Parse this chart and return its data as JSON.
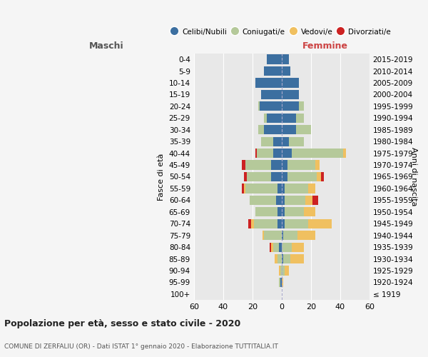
{
  "age_groups": [
    "100+",
    "95-99",
    "90-94",
    "85-89",
    "80-84",
    "75-79",
    "70-74",
    "65-69",
    "60-64",
    "55-59",
    "50-54",
    "45-49",
    "40-44",
    "35-39",
    "30-34",
    "25-29",
    "20-24",
    "15-19",
    "10-14",
    "5-9",
    "0-4"
  ],
  "birth_years": [
    "≤ 1919",
    "1920-1924",
    "1925-1929",
    "1930-1934",
    "1935-1939",
    "1940-1944",
    "1945-1949",
    "1950-1954",
    "1955-1959",
    "1960-1964",
    "1965-1969",
    "1970-1974",
    "1975-1979",
    "1980-1984",
    "1985-1989",
    "1990-1994",
    "1995-1999",
    "2000-2004",
    "2005-2009",
    "2010-2014",
    "2015-2019"
  ],
  "male": {
    "celibi": [
      0,
      1,
      0,
      0,
      2,
      0,
      3,
      3,
      4,
      3,
      7,
      7,
      6,
      6,
      12,
      10,
      15,
      14,
      18,
      12,
      10
    ],
    "coniugati": [
      0,
      1,
      1,
      3,
      4,
      12,
      16,
      15,
      18,
      22,
      17,
      18,
      11,
      8,
      4,
      2,
      1,
      0,
      0,
      0,
      0
    ],
    "vedovi": [
      0,
      0,
      1,
      2,
      1,
      1,
      2,
      0,
      0,
      1,
      0,
      0,
      0,
      0,
      0,
      0,
      0,
      0,
      0,
      0,
      0
    ],
    "divorziati": [
      0,
      0,
      0,
      0,
      1,
      0,
      2,
      0,
      0,
      1,
      2,
      2,
      1,
      0,
      0,
      0,
      0,
      0,
      0,
      0,
      0
    ]
  },
  "female": {
    "nubili": [
      0,
      0,
      0,
      1,
      0,
      1,
      2,
      2,
      2,
      2,
      4,
      4,
      7,
      5,
      10,
      10,
      12,
      12,
      12,
      6,
      5
    ],
    "coniugate": [
      0,
      0,
      2,
      5,
      7,
      10,
      16,
      13,
      14,
      16,
      20,
      19,
      35,
      10,
      10,
      5,
      3,
      0,
      0,
      0,
      0
    ],
    "vedove": [
      0,
      1,
      3,
      9,
      8,
      12,
      16,
      8,
      5,
      5,
      3,
      3,
      2,
      0,
      0,
      0,
      0,
      0,
      0,
      0,
      0
    ],
    "divorziate": [
      0,
      0,
      0,
      0,
      0,
      0,
      0,
      0,
      4,
      0,
      2,
      0,
      0,
      0,
      0,
      0,
      0,
      0,
      0,
      0,
      0
    ]
  },
  "colors": {
    "celibi": "#3c6fa0",
    "coniugati": "#b5c99a",
    "vedovi": "#f0c060",
    "divorziati": "#cc2222"
  },
  "xlim": 60,
  "title": "Popolazione per età, sesso e stato civile - 2020",
  "subtitle": "COMUNE DI ZERFALIU (OR) - Dati ISTAT 1° gennaio 2020 - Elaborazione TUTTITALIA.IT",
  "ylabel_left": "Fasce di età",
  "ylabel_right": "Anni di nascita",
  "xlabel_left": "Maschi",
  "xlabel_right": "Femmine",
  "bg_color": "#f5f5f5",
  "plot_bg": "#e8e8e8"
}
